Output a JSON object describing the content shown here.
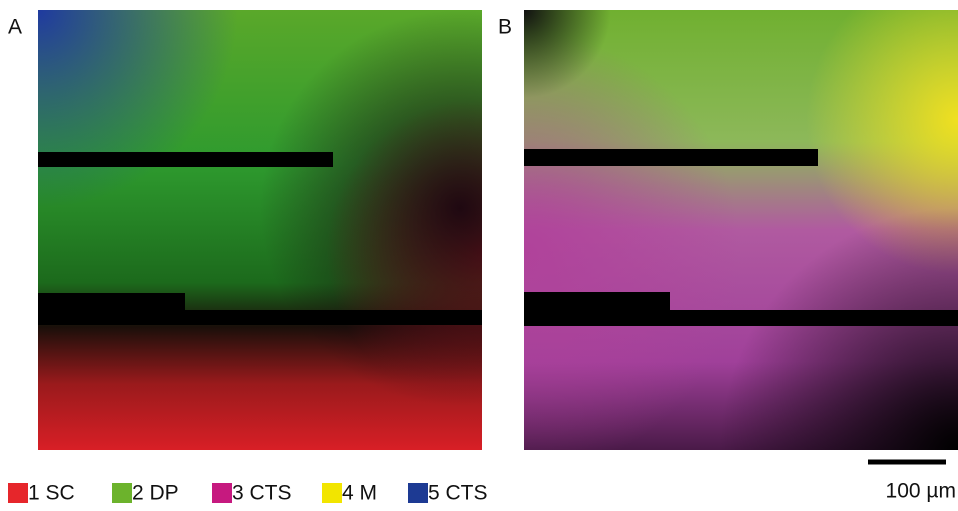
{
  "panels": [
    {
      "label": "A"
    },
    {
      "label": "B"
    }
  ],
  "legend": [
    {
      "label": "1 SC",
      "color": "#e6262b"
    },
    {
      "label": "2 DP",
      "color": "#6cb32c"
    },
    {
      "label": "3 CTS",
      "color": "#c6197f"
    },
    {
      "label": "4 M",
      "color": "#f2e500"
    },
    {
      "label": "5 CTS",
      "color": "#1d3a93"
    }
  ],
  "scale_bar": {
    "label": "100 µm"
  }
}
